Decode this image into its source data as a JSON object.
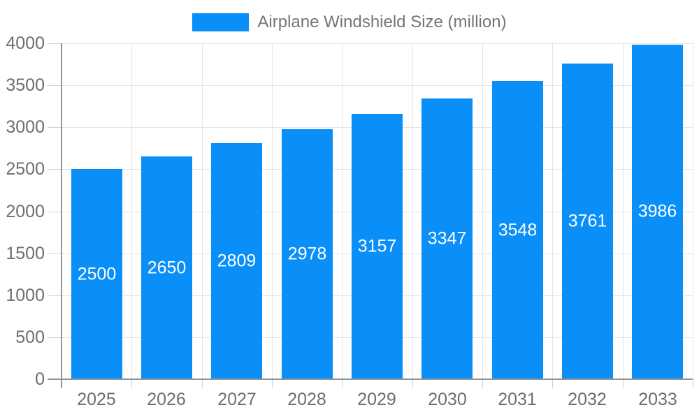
{
  "chart_data": {
    "type": "bar",
    "title": "Airplane Windshield Size (million)",
    "categories": [
      "2025",
      "2026",
      "2027",
      "2028",
      "2029",
      "2030",
      "2031",
      "2032",
      "2033"
    ],
    "values": [
      2500,
      2650,
      2809,
      2978,
      3157,
      3347,
      3548,
      3761,
      3986
    ],
    "xlabel": "",
    "ylabel": "",
    "ylim": [
      0,
      4000
    ],
    "ytick_step": 500,
    "ytick_labels": [
      "0",
      "500",
      "1000",
      "1500",
      "2000",
      "2500",
      "3000",
      "3500",
      "4000"
    ],
    "grid": true,
    "legend_position": "top-center",
    "bar_value_labels": "inside-center",
    "colors": {
      "bar": "#0a8ef8",
      "bar_label_text": "#ffffff",
      "axis_text": "#6e6e6e",
      "title_text": "#757575",
      "gridline": "#e4e4e4",
      "axis_line": "#949494",
      "tick": "#d2d2d2",
      "background": "#ffffff"
    }
  }
}
